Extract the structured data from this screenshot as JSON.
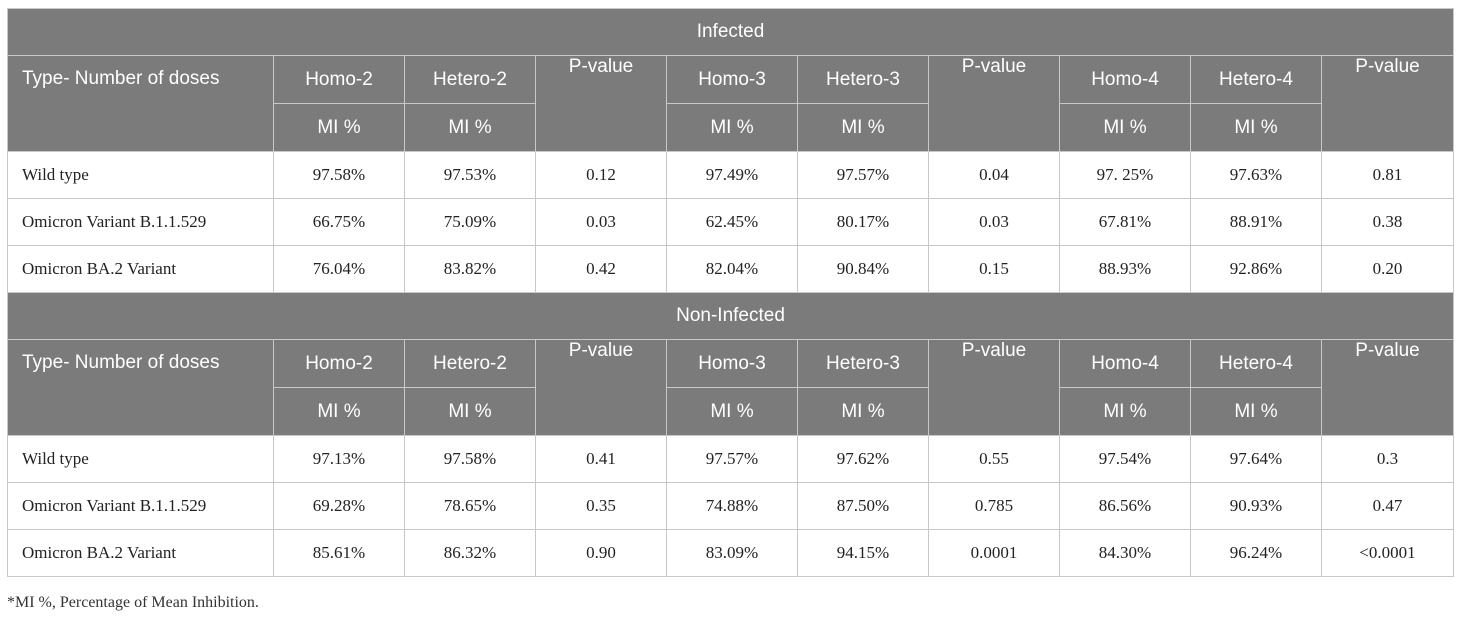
{
  "sections": [
    {
      "title": "Infected",
      "header_label": "Type- Number of doses",
      "col_headers": [
        "Homo-2",
        "Hetero-2",
        "P-value",
        "Homo-3",
        "Hetero-3",
        "P-value",
        "Homo-4",
        "Hetero-4",
        "P-value"
      ],
      "sub_header": "MI %",
      "rows": [
        {
          "label": "Wild type",
          "cells": [
            "97.58%",
            "97.53%",
            "0.12",
            "97.49%",
            "97.57%",
            "0.04",
            "97. 25%",
            "97.63%",
            "0.81"
          ]
        },
        {
          "label": "Omicron Variant B.1.1.529",
          "cells": [
            "66.75%",
            "75.09%",
            "0.03",
            "62.45%",
            "80.17%",
            "0.03",
            "67.81%",
            "88.91%",
            "0.38"
          ]
        },
        {
          "label": "Omicron BA.2 Variant",
          "cells": [
            "76.04%",
            "83.82%",
            "0.42",
            "82.04%",
            "90.84%",
            "0.15",
            "88.93%",
            "92.86%",
            "0.20"
          ]
        }
      ]
    },
    {
      "title": "Non-Infected",
      "header_label": "Type- Number of doses",
      "col_headers": [
        "Homo-2",
        "Hetero-2",
        "P-value",
        "Homo-3",
        "Hetero-3",
        "P-value",
        "Homo-4",
        "Hetero-4",
        "P-value"
      ],
      "sub_header": "MI %",
      "rows": [
        {
          "label": "Wild type",
          "cells": [
            "97.13%",
            "97.58%",
            "0.41",
            "97.57%",
            "97.62%",
            "0.55",
            "97.54%",
            "97.64%",
            "0.3"
          ]
        },
        {
          "label": "Omicron Variant B.1.1.529",
          "cells": [
            "69.28%",
            "78.65%",
            "0.35",
            "74.88%",
            "87.50%",
            "0.785",
            "86.56%",
            "90.93%",
            "0.47"
          ]
        },
        {
          "label": "Omicron BA.2 Variant",
          "cells": [
            "85.61%",
            "86.32%",
            "0.90",
            "83.09%",
            "94.15%",
            "0.0001",
            "84.30%",
            "96.24%",
            "<0.0001"
          ]
        }
      ]
    }
  ],
  "footnote": "*MI %, Percentage of Mean Inhibition.",
  "colors": {
    "header_bg": "#7b7b7b",
    "header_text": "#ffffff",
    "border": "#c8c8c8"
  }
}
